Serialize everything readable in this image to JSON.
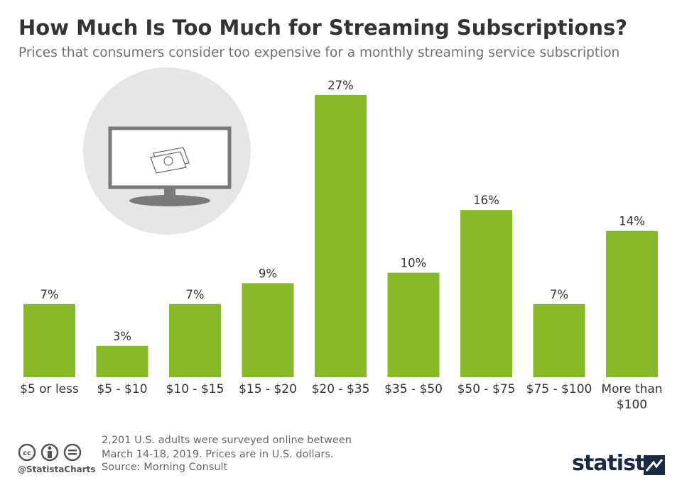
{
  "chart_data": {
    "type": "bar",
    "title": "How Much Is Too Much for Streaming Subscriptions?",
    "subtitle": "Prices that consumers consider too expensive for a monthly streaming service subscription",
    "categories": [
      "$5 or less",
      "$5 - $10",
      "$10 - $15",
      "$15 - $20",
      "$20 - $35",
      "$35 - $50",
      "$50 - $75",
      "$75 - $100",
      "More than $100"
    ],
    "values": [
      7,
      3,
      7,
      9,
      27,
      10,
      16,
      7,
      14
    ],
    "value_labels": [
      "7%",
      "3%",
      "7%",
      "9%",
      "27%",
      "10%",
      "16%",
      "7%",
      "14%"
    ],
    "color": "#86bb27",
    "note": "2,201 U.S. adults were surveyed online between March 14-18, 2019. Prices are in U.S. dollars.",
    "source": "Source: Morning Consult"
  },
  "handle": "@StatistaCharts",
  "brand": "statista"
}
